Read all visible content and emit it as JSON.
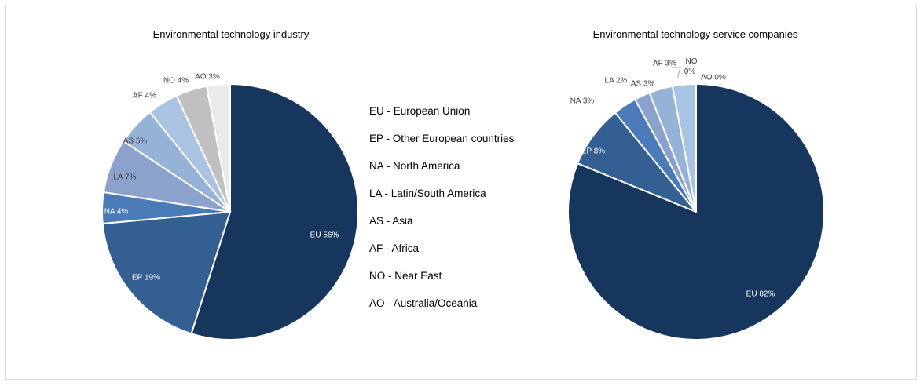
{
  "legend": [
    "EU - European Union",
    "EP - Other European countries",
    "NA - North America",
    "LA - Latin/South America",
    "AS - Asia",
    "AF - Africa",
    "NO - Near East",
    "AO - Australia/Oceania"
  ],
  "chart_data": [
    {
      "type": "pie",
      "title": "Environmental technology industry",
      "slices": [
        {
          "category": "EU",
          "value": 56,
          "label": "EU 56%",
          "color": "#17365d"
        },
        {
          "category": "EP",
          "value": 19,
          "label": "EP 19%",
          "color": "#345f92"
        },
        {
          "category": "NA",
          "value": 4,
          "label": "NA 4%",
          "color": "#4a7ab8"
        },
        {
          "category": "LA",
          "value": 7,
          "label": "LA 7%",
          "color": "#8ba3cc"
        },
        {
          "category": "AS",
          "value": 5,
          "label": "AS 5%",
          "color": "#95b3d7"
        },
        {
          "category": "AF",
          "value": 4,
          "label": "AF 4%",
          "color": "#a9c3e2"
        },
        {
          "category": "NO",
          "value": 4,
          "label": "NO 4%",
          "color": "#c0c0c0"
        },
        {
          "category": "AO",
          "value": 3,
          "label": "AO 3%",
          "color": "#eaeaea"
        }
      ]
    },
    {
      "type": "pie",
      "title": "Environmental technology service companies",
      "slices": [
        {
          "category": "EU",
          "value": 82,
          "label": "EU 82%",
          "color": "#17365d"
        },
        {
          "category": "EP",
          "value": 8,
          "label": "EP 8%",
          "color": "#345f92"
        },
        {
          "category": "NA",
          "value": 3,
          "label": "NA 3%",
          "color": "#4a7ab8"
        },
        {
          "category": "LA",
          "value": 2,
          "label": "LA 2%",
          "color": "#8ba3cc"
        },
        {
          "category": "AS",
          "value": 3,
          "label": "AS 3%",
          "color": "#95b3d7"
        },
        {
          "category": "AF",
          "value": 3,
          "label": "AF 3%",
          "color": "#a9c3e2"
        },
        {
          "category": "NO",
          "value": 0,
          "label": "NO 0%",
          "color": "#c0c0c0"
        },
        {
          "category": "AO",
          "value": 0,
          "label": "AO 0%",
          "color": "#eaeaea"
        }
      ]
    }
  ]
}
